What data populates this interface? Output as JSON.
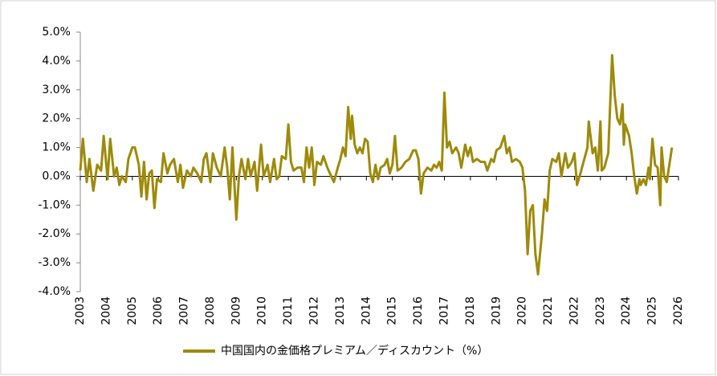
{
  "chart_data": {
    "type": "line",
    "x": [
      2003.0,
      2003.1,
      2003.25,
      2003.35,
      2003.5,
      2003.65,
      2003.8,
      2003.9,
      2004.05,
      2004.15,
      2004.3,
      2004.4,
      2004.5,
      2004.6,
      2004.75,
      2004.85,
      2005.0,
      2005.1,
      2005.25,
      2005.35,
      2005.45,
      2005.55,
      2005.65,
      2005.75,
      2005.85,
      2005.95,
      2006.1,
      2006.2,
      2006.35,
      2006.45,
      2006.6,
      2006.75,
      2006.85,
      2006.95,
      2007.1,
      2007.25,
      2007.35,
      2007.5,
      2007.65,
      2007.75,
      2007.85,
      2008.0,
      2008.1,
      2008.25,
      2008.4,
      2008.55,
      2008.65,
      2008.75,
      2008.85,
      2009.0,
      2009.1,
      2009.2,
      2009.35,
      2009.45,
      2009.55,
      2009.7,
      2009.8,
      2009.95,
      2010.05,
      2010.2,
      2010.3,
      2010.45,
      2010.55,
      2010.65,
      2010.75,
      2010.9,
      2011.0,
      2011.1,
      2011.2,
      2011.35,
      2011.5,
      2011.6,
      2011.7,
      2011.8,
      2011.9,
      2012.0,
      2012.1,
      2012.25,
      2012.35,
      2012.5,
      2012.6,
      2012.75,
      2012.9,
      2013.0,
      2013.1,
      2013.2,
      2013.3,
      2013.4,
      2013.45,
      2013.55,
      2013.65,
      2013.75,
      2013.85,
      2013.95,
      2014.05,
      2014.15,
      2014.25,
      2014.35,
      2014.45,
      2014.55,
      2014.7,
      2014.8,
      2014.9,
      2015.0,
      2015.1,
      2015.2,
      2015.35,
      2015.5,
      2015.65,
      2015.8,
      2015.9,
      2016.0,
      2016.1,
      2016.2,
      2016.35,
      2016.5,
      2016.6,
      2016.7,
      2016.8,
      2016.9,
      2017.0,
      2017.1,
      2017.2,
      2017.3,
      2017.45,
      2017.55,
      2017.65,
      2017.8,
      2017.9,
      2018.0,
      2018.1,
      2018.25,
      2018.4,
      2018.55,
      2018.65,
      2018.8,
      2018.9,
      2019.0,
      2019.15,
      2019.3,
      2019.4,
      2019.5,
      2019.6,
      2019.75,
      2019.9,
      2020.0,
      2020.1,
      2020.2,
      2020.3,
      2020.4,
      2020.5,
      2020.6,
      2020.75,
      2020.85,
      2020.95,
      2021.05,
      2021.15,
      2021.3,
      2021.4,
      2021.5,
      2021.65,
      2021.75,
      2021.9,
      2022.0,
      2022.1,
      2022.2,
      2022.35,
      2022.5,
      2022.55,
      2022.7,
      2022.8,
      2022.9,
      2023.0,
      2023.05,
      2023.15,
      2023.3,
      2023.45,
      2023.55,
      2023.65,
      2023.75,
      2023.85,
      2023.9,
      2023.95,
      2024.1,
      2024.2,
      2024.3,
      2024.4,
      2024.5,
      2024.55,
      2024.65,
      2024.75,
      2024.85,
      2024.9,
      2025.0,
      2025.1,
      2025.2,
      2025.3,
      2025.35,
      2025.45,
      2025.55,
      2025.75
    ],
    "series": [
      {
        "name": "中国国内の金価格プレミアム／ディスカウント（%）",
        "color": "#9e8a0b",
        "values": [
          0.2,
          1.3,
          -0.2,
          0.6,
          -0.5,
          0.4,
          0.2,
          1.4,
          -0.1,
          1.3,
          0.0,
          0.3,
          -0.3,
          0.0,
          -0.2,
          0.6,
          1.0,
          1.0,
          0.4,
          -0.7,
          0.5,
          -0.8,
          0.1,
          0.2,
          -1.1,
          -0.1,
          -0.2,
          0.8,
          0.1,
          0.4,
          0.6,
          -0.2,
          0.4,
          -0.4,
          0.2,
          0.0,
          0.3,
          0.1,
          -0.2,
          0.6,
          0.8,
          -0.2,
          0.8,
          0.3,
          0.0,
          1.0,
          0.3,
          -0.8,
          1.0,
          -1.5,
          0.0,
          0.6,
          -0.1,
          0.6,
          0.0,
          0.5,
          -0.5,
          1.1,
          0.0,
          0.4,
          -0.2,
          0.6,
          -0.1,
          0.0,
          0.7,
          0.6,
          1.8,
          0.5,
          0.2,
          0.3,
          0.3,
          -0.2,
          1.0,
          0.3,
          1.0,
          -0.3,
          0.5,
          0.4,
          0.7,
          0.3,
          0.1,
          -0.2,
          0.3,
          0.6,
          1.0,
          0.7,
          2.4,
          1.3,
          2.1,
          1.1,
          0.8,
          1.0,
          0.8,
          1.3,
          1.2,
          0.1,
          -0.2,
          0.4,
          -0.1,
          0.3,
          0.4,
          0.6,
          0.1,
          0.4,
          1.4,
          0.2,
          0.3,
          0.5,
          0.6,
          0.9,
          0.9,
          0.6,
          -0.6,
          0.1,
          0.3,
          0.2,
          0.4,
          0.3,
          0.5,
          0.2,
          2.9,
          1.0,
          1.2,
          0.8,
          1.0,
          0.8,
          0.3,
          1.1,
          0.7,
          1.0,
          0.5,
          0.6,
          0.5,
          0.5,
          0.2,
          0.6,
          0.5,
          0.9,
          1.0,
          1.4,
          0.8,
          1.0,
          0.5,
          0.6,
          0.5,
          0.3,
          -0.5,
          -2.7,
          -1.2,
          -1.0,
          -2.7,
          -3.4,
          -2.0,
          -0.8,
          -1.2,
          0.2,
          0.6,
          0.5,
          0.8,
          0.0,
          0.8,
          0.3,
          0.5,
          0.8,
          -0.3,
          0.0,
          0.5,
          1.0,
          1.9,
          0.8,
          1.0,
          0.2,
          1.9,
          0.2,
          0.3,
          0.8,
          4.2,
          2.8,
          2.0,
          1.8,
          2.5,
          1.1,
          1.8,
          1.4,
          0.8,
          0.0,
          -0.6,
          -0.1,
          -0.3,
          -0.1,
          -0.3,
          0.3,
          -0.1,
          1.3,
          0.4,
          0.3,
          -1.0,
          1.0,
          0.0,
          -0.2,
          1.0
        ]
      }
    ],
    "xlim": [
      2003,
      2026
    ],
    "xticks": [
      2003,
      2004,
      2005,
      2006,
      2007,
      2008,
      2009,
      2010,
      2011,
      2012,
      2013,
      2014,
      2015,
      2016,
      2017,
      2018,
      2019,
      2020,
      2021,
      2022,
      2023,
      2024,
      2025,
      2026
    ],
    "ylim": [
      -4,
      5
    ],
    "yticks": [
      {
        "value": -4,
        "label": "-4.0%"
      },
      {
        "value": -3,
        "label": "-3.0%"
      },
      {
        "value": -2,
        "label": "-2.0%"
      },
      {
        "value": -1,
        "label": "-1.0%"
      },
      {
        "value": 0,
        "label": "0.0%"
      },
      {
        "value": 1,
        "label": "1.0%"
      },
      {
        "value": 2,
        "label": "2.0%"
      },
      {
        "value": 3,
        "label": "3.0%"
      },
      {
        "value": 4,
        "label": "4.0%"
      },
      {
        "value": 5,
        "label": "5.0%"
      }
    ],
    "legend": "bottom"
  }
}
